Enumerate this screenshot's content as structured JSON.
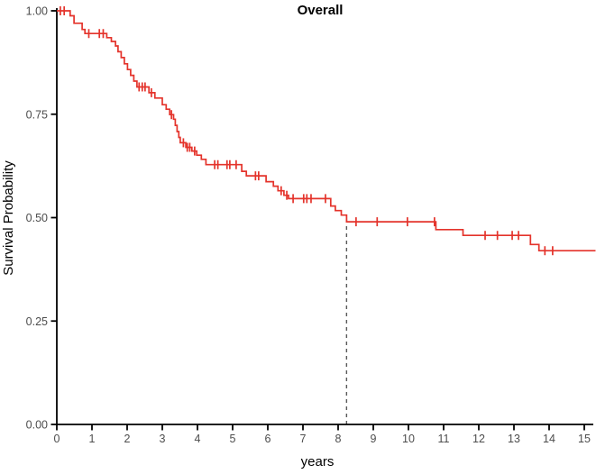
{
  "title": "Overall",
  "x_axis": {
    "label": "years",
    "ticks": [
      0,
      1,
      2,
      3,
      4,
      5,
      6,
      7,
      8,
      9,
      10,
      11,
      12,
      13,
      14,
      15
    ]
  },
  "y_axis": {
    "label": "Survival Probability",
    "tick_labels": [
      "0.00",
      "0.25",
      "0.50",
      "0.75",
      "1.00"
    ],
    "tick_values": [
      0,
      0.25,
      0.5,
      0.75,
      1
    ]
  },
  "colors": {
    "curve": "#e4332b",
    "axis": "#000000",
    "tick_label": "#4d4d4d",
    "median_line": "#595959",
    "background": "#ffffff"
  },
  "chart_data": {
    "type": "line",
    "subtype": "kaplan-meier-step-curve",
    "title": "Overall",
    "xlabel": "years",
    "ylabel": "Survival Probability",
    "xlim": [
      0,
      15.32
    ],
    "ylim": [
      0,
      1
    ],
    "grid": false,
    "legend": "none",
    "series": [
      {
        "name": "Overall",
        "color": "#e4332b",
        "start": [
          0,
          1.0
        ],
        "end_time": 15.32,
        "steps": [
          [
            0.38,
            0.988
          ],
          [
            0.49,
            0.97
          ],
          [
            0.72,
            0.955
          ],
          [
            0.8,
            0.945
          ],
          [
            1.42,
            0.935
          ],
          [
            1.55,
            0.926
          ],
          [
            1.67,
            0.915
          ],
          [
            1.74,
            0.901
          ],
          [
            1.83,
            0.887
          ],
          [
            1.92,
            0.872
          ],
          [
            2.01,
            0.858
          ],
          [
            2.1,
            0.844
          ],
          [
            2.19,
            0.83
          ],
          [
            2.28,
            0.816
          ],
          [
            2.62,
            0.802
          ],
          [
            2.79,
            0.789
          ],
          [
            3.0,
            0.773
          ],
          [
            3.11,
            0.762
          ],
          [
            3.21,
            0.749
          ],
          [
            3.32,
            0.738
          ],
          [
            3.37,
            0.723
          ],
          [
            3.42,
            0.708
          ],
          [
            3.47,
            0.694
          ],
          [
            3.51,
            0.681
          ],
          [
            3.67,
            0.67
          ],
          [
            3.84,
            0.661
          ],
          [
            3.98,
            0.651
          ],
          [
            4.11,
            0.641
          ],
          [
            4.24,
            0.628
          ],
          [
            5.26,
            0.612
          ],
          [
            5.39,
            0.601
          ],
          [
            5.95,
            0.587
          ],
          [
            6.16,
            0.576
          ],
          [
            6.29,
            0.565
          ],
          [
            6.46,
            0.554
          ],
          [
            6.59,
            0.546
          ],
          [
            7.79,
            0.528
          ],
          [
            7.92,
            0.517
          ],
          [
            8.09,
            0.506
          ],
          [
            8.24,
            0.49
          ],
          [
            10.78,
            0.471
          ],
          [
            11.55,
            0.457
          ],
          [
            13.47,
            0.435
          ],
          [
            13.71,
            0.42
          ]
        ],
        "censor_marks": [
          [
            0.1,
            1.0
          ],
          [
            0.21,
            1.0
          ],
          [
            0.91,
            0.945
          ],
          [
            1.21,
            0.945
          ],
          [
            1.32,
            0.945
          ],
          [
            2.34,
            0.816
          ],
          [
            2.43,
            0.816
          ],
          [
            2.51,
            0.816
          ],
          [
            2.69,
            0.802
          ],
          [
            3.26,
            0.749
          ],
          [
            3.6,
            0.681
          ],
          [
            3.71,
            0.67
          ],
          [
            3.78,
            0.67
          ],
          [
            3.92,
            0.661
          ],
          [
            4.49,
            0.628
          ],
          [
            4.58,
            0.628
          ],
          [
            4.84,
            0.628
          ],
          [
            4.92,
            0.628
          ],
          [
            5.1,
            0.628
          ],
          [
            5.65,
            0.601
          ],
          [
            5.74,
            0.601
          ],
          [
            6.38,
            0.565
          ],
          [
            6.54,
            0.554
          ],
          [
            6.72,
            0.546
          ],
          [
            7.02,
            0.546
          ],
          [
            7.11,
            0.546
          ],
          [
            7.23,
            0.546
          ],
          [
            7.64,
            0.546
          ],
          [
            8.51,
            0.49
          ],
          [
            9.11,
            0.49
          ],
          [
            9.97,
            0.49
          ],
          [
            10.74,
            0.49
          ],
          [
            12.18,
            0.457
          ],
          [
            12.53,
            0.457
          ],
          [
            12.95,
            0.457
          ],
          [
            13.13,
            0.457
          ],
          [
            13.88,
            0.42
          ],
          [
            14.1,
            0.42
          ]
        ]
      }
    ],
    "median_line": {
      "time": 8.24,
      "survival_top": 0.495,
      "style": "dashed-vertical",
      "color": "#595959"
    }
  }
}
